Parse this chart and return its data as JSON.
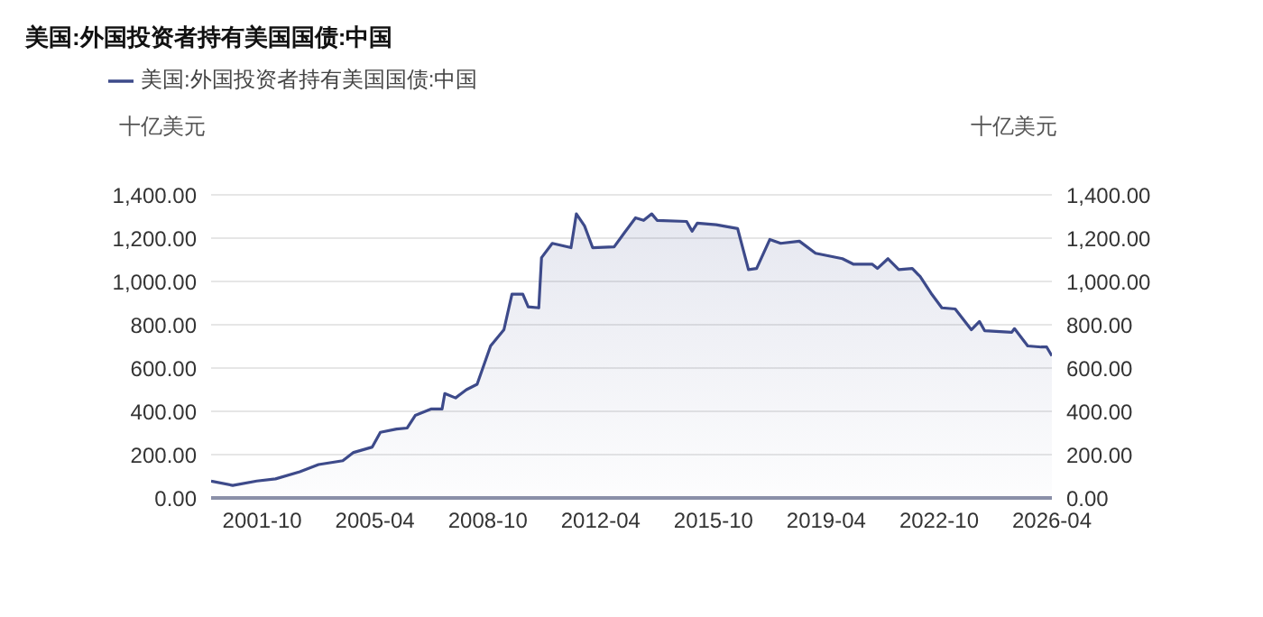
{
  "chart_data": {
    "type": "area",
    "title": "美国:外国投资者持有美国国债:中国",
    "ylabel": "十亿美元",
    "y2label": "十亿美元",
    "x": [
      "2000-03",
      "2000-11",
      "2001-08",
      "2002-03",
      "2002-12",
      "2003-07",
      "2004-04",
      "2004-08",
      "2005-03",
      "2005-06",
      "2005-12",
      "2006-04",
      "2006-07",
      "2007-01",
      "2007-05",
      "2007-06",
      "2007-10",
      "2008-02",
      "2008-06",
      "2008-11",
      "2009-04",
      "2009-07",
      "2009-11",
      "2010-01",
      "2010-05",
      "2010-06",
      "2010-10",
      "2011-05",
      "2011-07",
      "2011-10",
      "2012-01",
      "2012-09",
      "2013-01",
      "2013-05",
      "2013-08",
      "2013-11",
      "2014-01",
      "2014-12",
      "2015-02",
      "2015-04",
      "2015-11",
      "2016-07",
      "2016-11",
      "2017-02",
      "2017-07",
      "2017-11",
      "2018-06",
      "2018-12",
      "2019-10",
      "2020-02",
      "2020-09",
      "2020-11",
      "2021-03",
      "2021-07",
      "2021-12",
      "2022-03",
      "2022-07",
      "2022-11",
      "2023-04",
      "2023-10",
      "2024-01",
      "2024-03",
      "2025-01",
      "2025-02",
      "2025-07",
      "2025-12",
      "2026-02",
      "2026-04"
    ],
    "series": [
      {
        "name": "美国:外国投资者持有美国国债:中国",
        "color": "#3d4a8a",
        "values": [
          78,
          58,
          78,
          88,
          121,
          154,
          172,
          210,
          235,
          303,
          318,
          323,
          381,
          411,
          411,
          482,
          462,
          500,
          525,
          702,
          777,
          941,
          941,
          883,
          878,
          1110,
          1176,
          1156,
          1312,
          1257,
          1156,
          1160,
          1228,
          1294,
          1282,
          1312,
          1282,
          1277,
          1232,
          1269,
          1262,
          1244,
          1055,
          1060,
          1194,
          1176,
          1186,
          1130,
          1105,
          1080,
          1080,
          1060,
          1105,
          1055,
          1060,
          1022,
          946,
          878,
          873,
          777,
          815,
          772,
          765,
          782,
          702,
          697,
          697,
          656
        ]
      }
    ],
    "xlim": [
      "2000-03",
      "2026-04"
    ],
    "xticks": [
      "2001-10",
      "2005-04",
      "2008-10",
      "2012-04",
      "2015-10",
      "2019-04",
      "2022-10",
      "2026-04"
    ],
    "ylim": [
      0,
      1400
    ],
    "yticks": [
      {
        "value": 0,
        "label": "0.00"
      },
      {
        "value": 200,
        "label": "200.00"
      },
      {
        "value": 400,
        "label": "400.00"
      },
      {
        "value": 600,
        "label": "600.00"
      },
      {
        "value": 800,
        "label": "800.00"
      },
      {
        "value": 1000,
        "label": "1,000.00"
      },
      {
        "value": 1200,
        "label": "1,200.00"
      },
      {
        "value": 1400,
        "label": "1,400.00"
      }
    ],
    "y2lim": [
      0,
      1400
    ],
    "y2ticks": [
      {
        "value": 0,
        "label": "0.00"
      },
      {
        "value": 200,
        "label": "200.00"
      },
      {
        "value": 400,
        "label": "400.00"
      },
      {
        "value": 600,
        "label": "600.00"
      },
      {
        "value": 800,
        "label": "800.00"
      },
      {
        "value": 1000,
        "label": "1,000.00"
      },
      {
        "value": 1200,
        "label": "1,200.00"
      },
      {
        "value": 1400,
        "label": "1,400.00"
      }
    ],
    "grid": "y",
    "legend": "top left",
    "marker": "none",
    "line_style": "solid"
  }
}
